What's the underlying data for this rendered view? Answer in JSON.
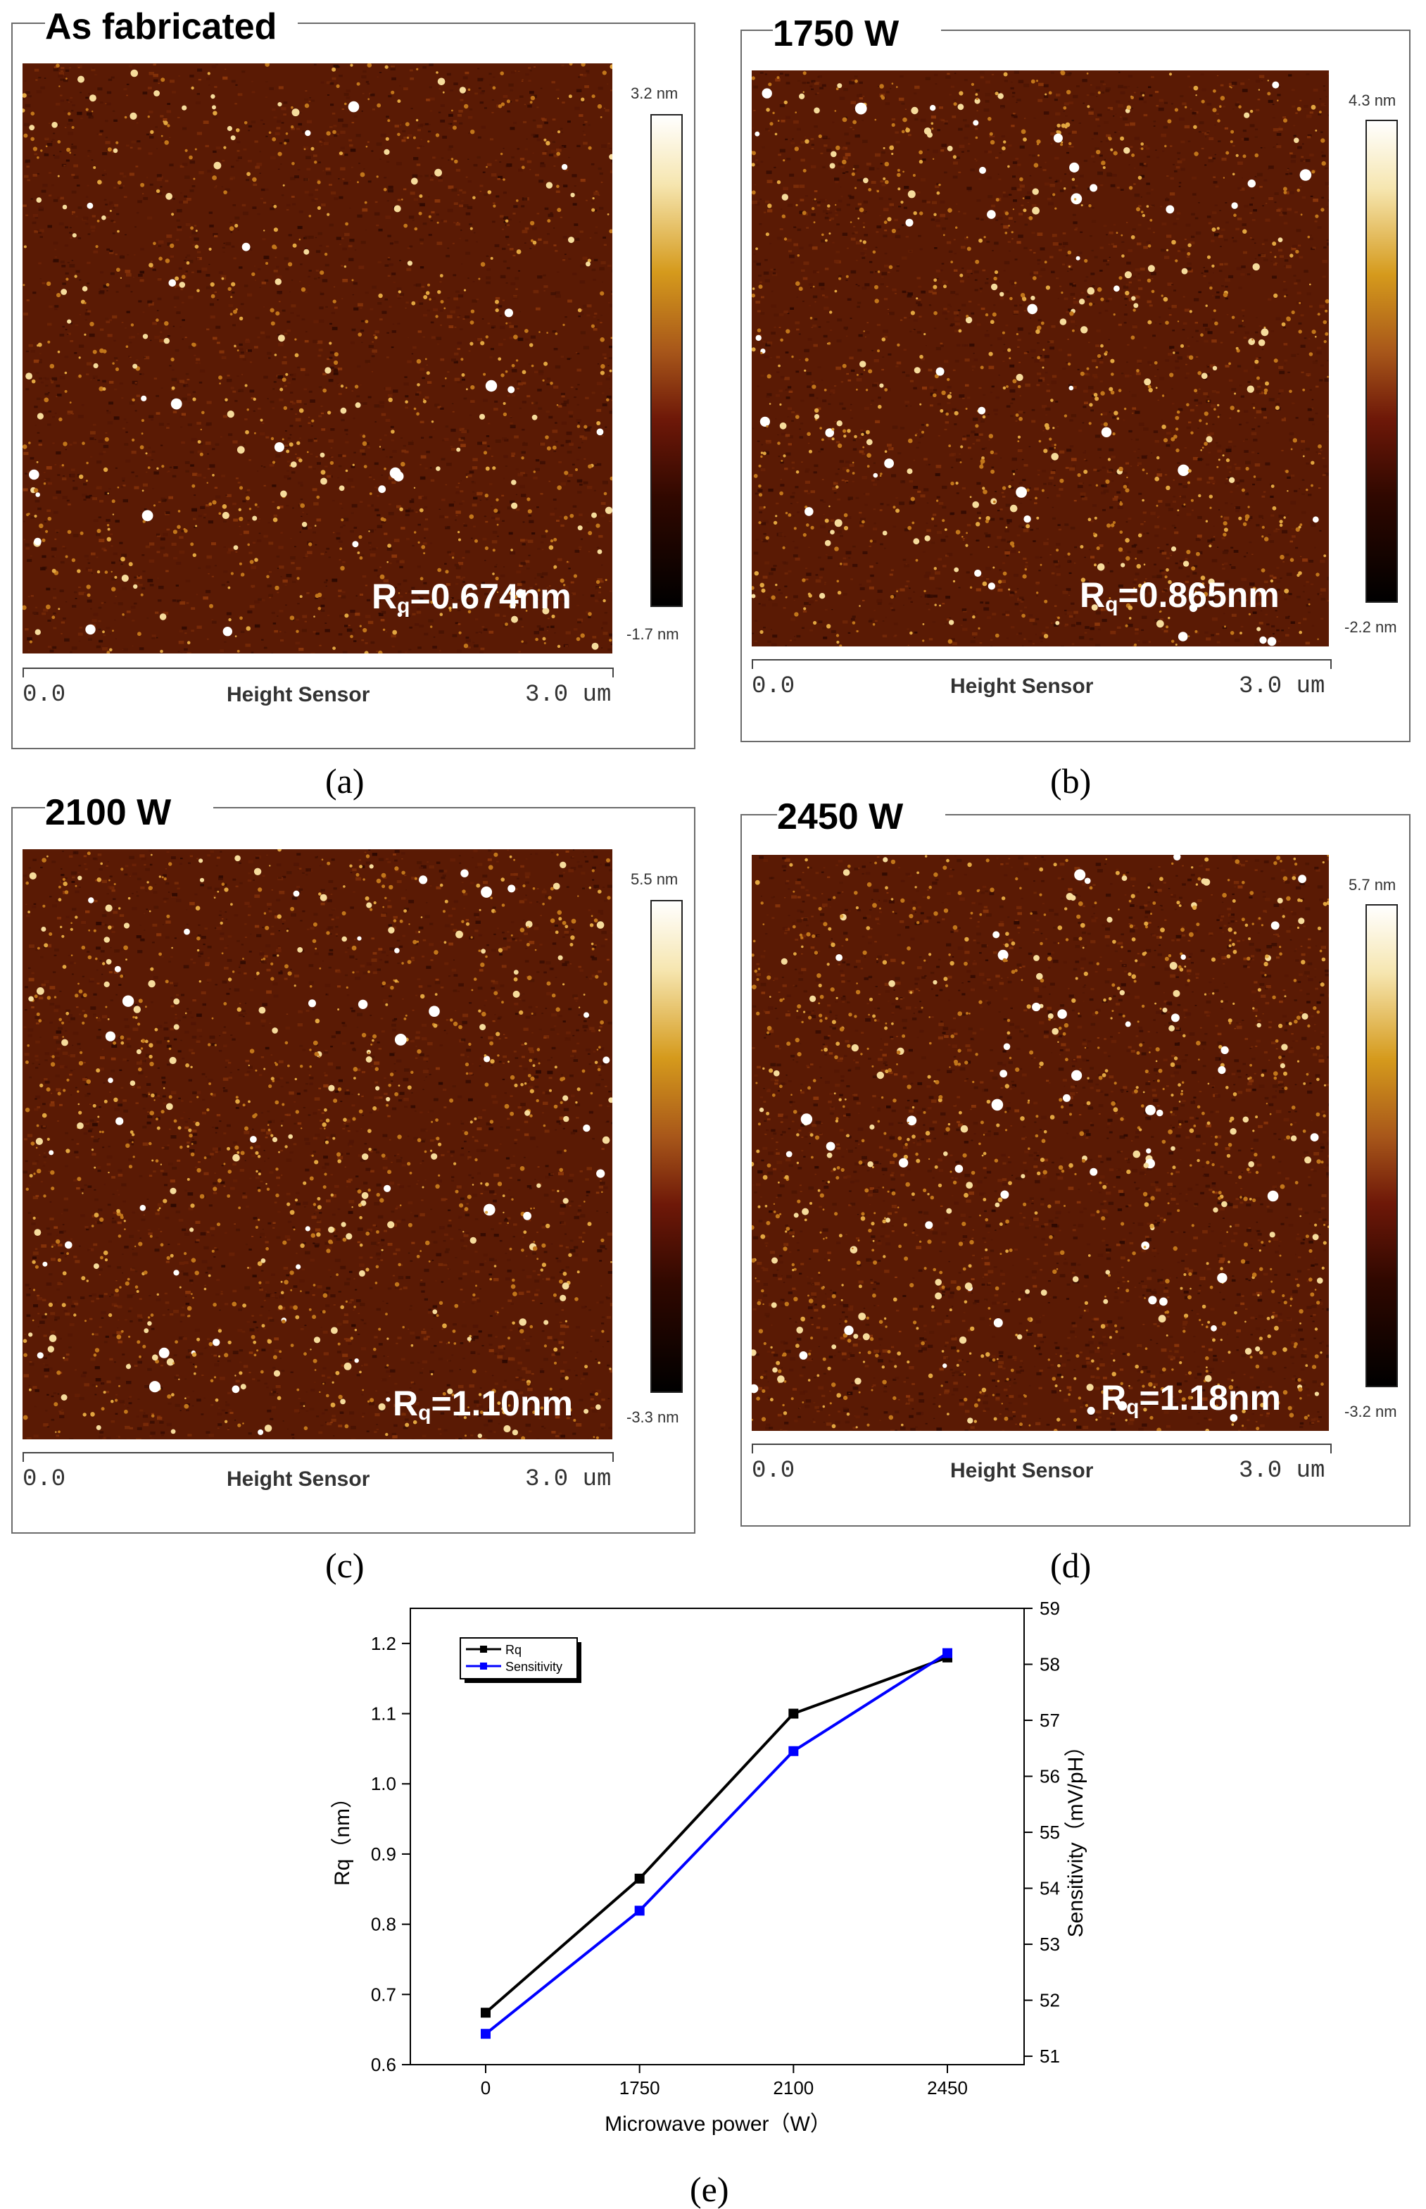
{
  "panels": [
    {
      "title": "As fabricated",
      "rq_prefix": "R",
      "rq_sub": "q",
      "rq_value": "=0.674nm",
      "cbar_max": "3.2 nm",
      "cbar_min": "-1.7 nm",
      "scale_left": "0.0",
      "scale_mid": "Height Sensor",
      "scale_right": "3.0 um",
      "label": "(a)"
    },
    {
      "title": "1750 W",
      "rq_prefix": "R",
      "rq_sub": "q",
      "rq_value": "=0.865nm",
      "cbar_max": "4.3 nm",
      "cbar_min": "-2.2 nm",
      "scale_left": "0.0",
      "scale_mid": "Height Sensor",
      "scale_right": "3.0 um",
      "label": "(b)"
    },
    {
      "title": "2100 W",
      "rq_prefix": "R",
      "rq_sub": "q",
      "rq_value": "=1.10nm",
      "cbar_max": "5.5 nm",
      "cbar_min": "-3.3 nm",
      "scale_left": "0.0",
      "scale_mid": "Height Sensor",
      "scale_right": "3.0 um",
      "label": "(c)"
    },
    {
      "title": "2450 W",
      "rq_prefix": "R",
      "rq_sub": "q",
      "rq_value": "=1.18nm",
      "cbar_max": "5.7 nm",
      "cbar_min": "-3.2 nm",
      "scale_left": "0.0",
      "scale_mid": "Height Sensor",
      "scale_right": "3.0 um",
      "label": "(d)"
    }
  ],
  "chart_label": "(e)",
  "chart_data": {
    "type": "line",
    "categories": [
      "0",
      "1750",
      "2100",
      "2450"
    ],
    "xlabel": "Microwave power（W）",
    "ylabel": "Rq（nm）",
    "y2label": "Sensitivity（mV/pH）",
    "ylim": [
      0.6,
      1.25
    ],
    "y2lim": [
      50.85,
      59
    ],
    "yticks": [
      "0.6",
      "0.7",
      "0.8",
      "0.9",
      "1.0",
      "1.1",
      "1.2"
    ],
    "y2ticks": [
      "51",
      "52",
      "53",
      "54",
      "55",
      "56",
      "57",
      "58",
      "59"
    ],
    "legend_position": "top-left",
    "series": [
      {
        "name": "Rq",
        "axis": "left",
        "color": "#000000",
        "values": [
          0.674,
          0.865,
          1.1,
          1.18
        ]
      },
      {
        "name": "Sensitivity",
        "axis": "right",
        "color": "#0000ff",
        "values": [
          51.4,
          53.6,
          56.45,
          58.2
        ]
      }
    ]
  }
}
